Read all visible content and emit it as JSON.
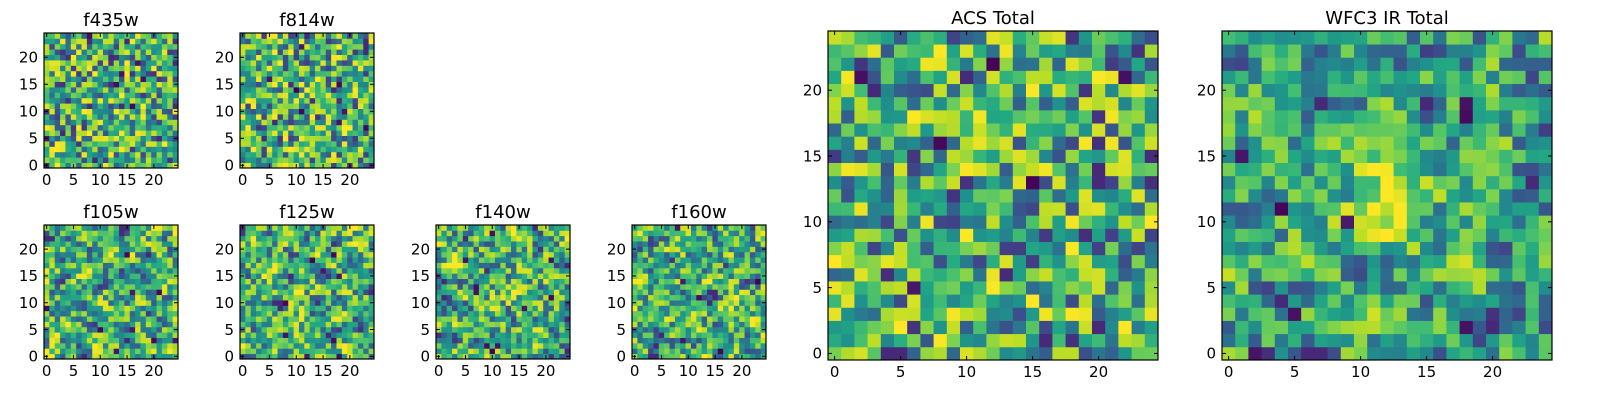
{
  "chart_data": [
    {
      "type": "heatmap",
      "title": "f435w",
      "grid_size": 25,
      "xticks": [
        0,
        5,
        10,
        15,
        20
      ],
      "yticks": [
        0,
        5,
        10,
        15,
        20
      ],
      "colormap": "viridis",
      "seed": 11,
      "smooth": 0
    },
    {
      "type": "heatmap",
      "title": "f814w",
      "grid_size": 25,
      "xticks": [
        0,
        5,
        10,
        15,
        20
      ],
      "yticks": [
        0,
        5,
        10,
        15,
        20
      ],
      "colormap": "viridis",
      "seed": 23,
      "smooth": 0
    },
    {
      "type": "heatmap",
      "title": "f105w",
      "grid_size": 25,
      "xticks": [
        0,
        5,
        10,
        15,
        20
      ],
      "yticks": [
        0,
        5,
        10,
        15,
        20
      ],
      "colormap": "viridis",
      "seed": 37,
      "smooth": 1
    },
    {
      "type": "heatmap",
      "title": "f125w",
      "grid_size": 25,
      "xticks": [
        0,
        5,
        10,
        15,
        20
      ],
      "yticks": [
        0,
        5,
        10,
        15,
        20
      ],
      "colormap": "viridis",
      "seed": 41,
      "smooth": 1
    },
    {
      "type": "heatmap",
      "title": "f140w",
      "grid_size": 25,
      "xticks": [
        0,
        5,
        10,
        15,
        20
      ],
      "yticks": [
        0,
        5,
        10,
        15,
        20
      ],
      "colormap": "viridis",
      "seed": 53,
      "smooth": 1
    },
    {
      "type": "heatmap",
      "title": "f160w",
      "grid_size": 25,
      "xticks": [
        0,
        5,
        10,
        15,
        20
      ],
      "yticks": [
        0,
        5,
        10,
        15,
        20
      ],
      "colormap": "viridis",
      "seed": 67,
      "smooth": 1
    },
    {
      "type": "heatmap",
      "title": "ACS Total",
      "grid_size": 25,
      "xticks": [
        0,
        5,
        10,
        15,
        20
      ],
      "yticks": [
        0,
        5,
        10,
        15,
        20
      ],
      "colormap": "viridis",
      "seed": 79,
      "smooth": 0
    },
    {
      "type": "heatmap",
      "title": "WFC3 IR Total",
      "grid_size": 25,
      "xticks": [
        0,
        5,
        10,
        15,
        20
      ],
      "yticks": [
        0,
        5,
        10,
        15,
        20
      ],
      "colormap": "viridis",
      "seed": 97,
      "smooth": 1,
      "bright_center": [
        12,
        11
      ]
    }
  ]
}
